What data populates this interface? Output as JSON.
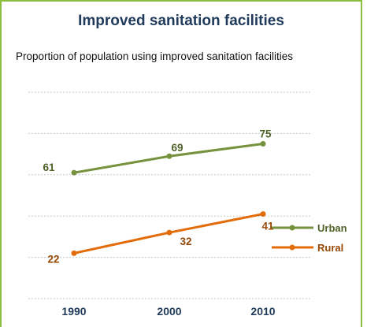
{
  "chart_data": {
    "type": "line",
    "title": "Improved sanitation facilities",
    "subtitle": "Proportion of population using improved sanitation facilities",
    "x": [
      "1990",
      "2000",
      "2010"
    ],
    "ylim": [
      0,
      100
    ],
    "grid": true,
    "legend": "right",
    "series": [
      {
        "name": "Urban",
        "values": [
          61,
          69,
          75
        ],
        "color": "#76923c"
      },
      {
        "name": "Rural",
        "values": [
          22,
          32,
          41
        ],
        "color": "#e36c0a"
      }
    ],
    "label_colors": {
      "Urban": "#4f6228",
      "Rural": "#974806"
    }
  }
}
